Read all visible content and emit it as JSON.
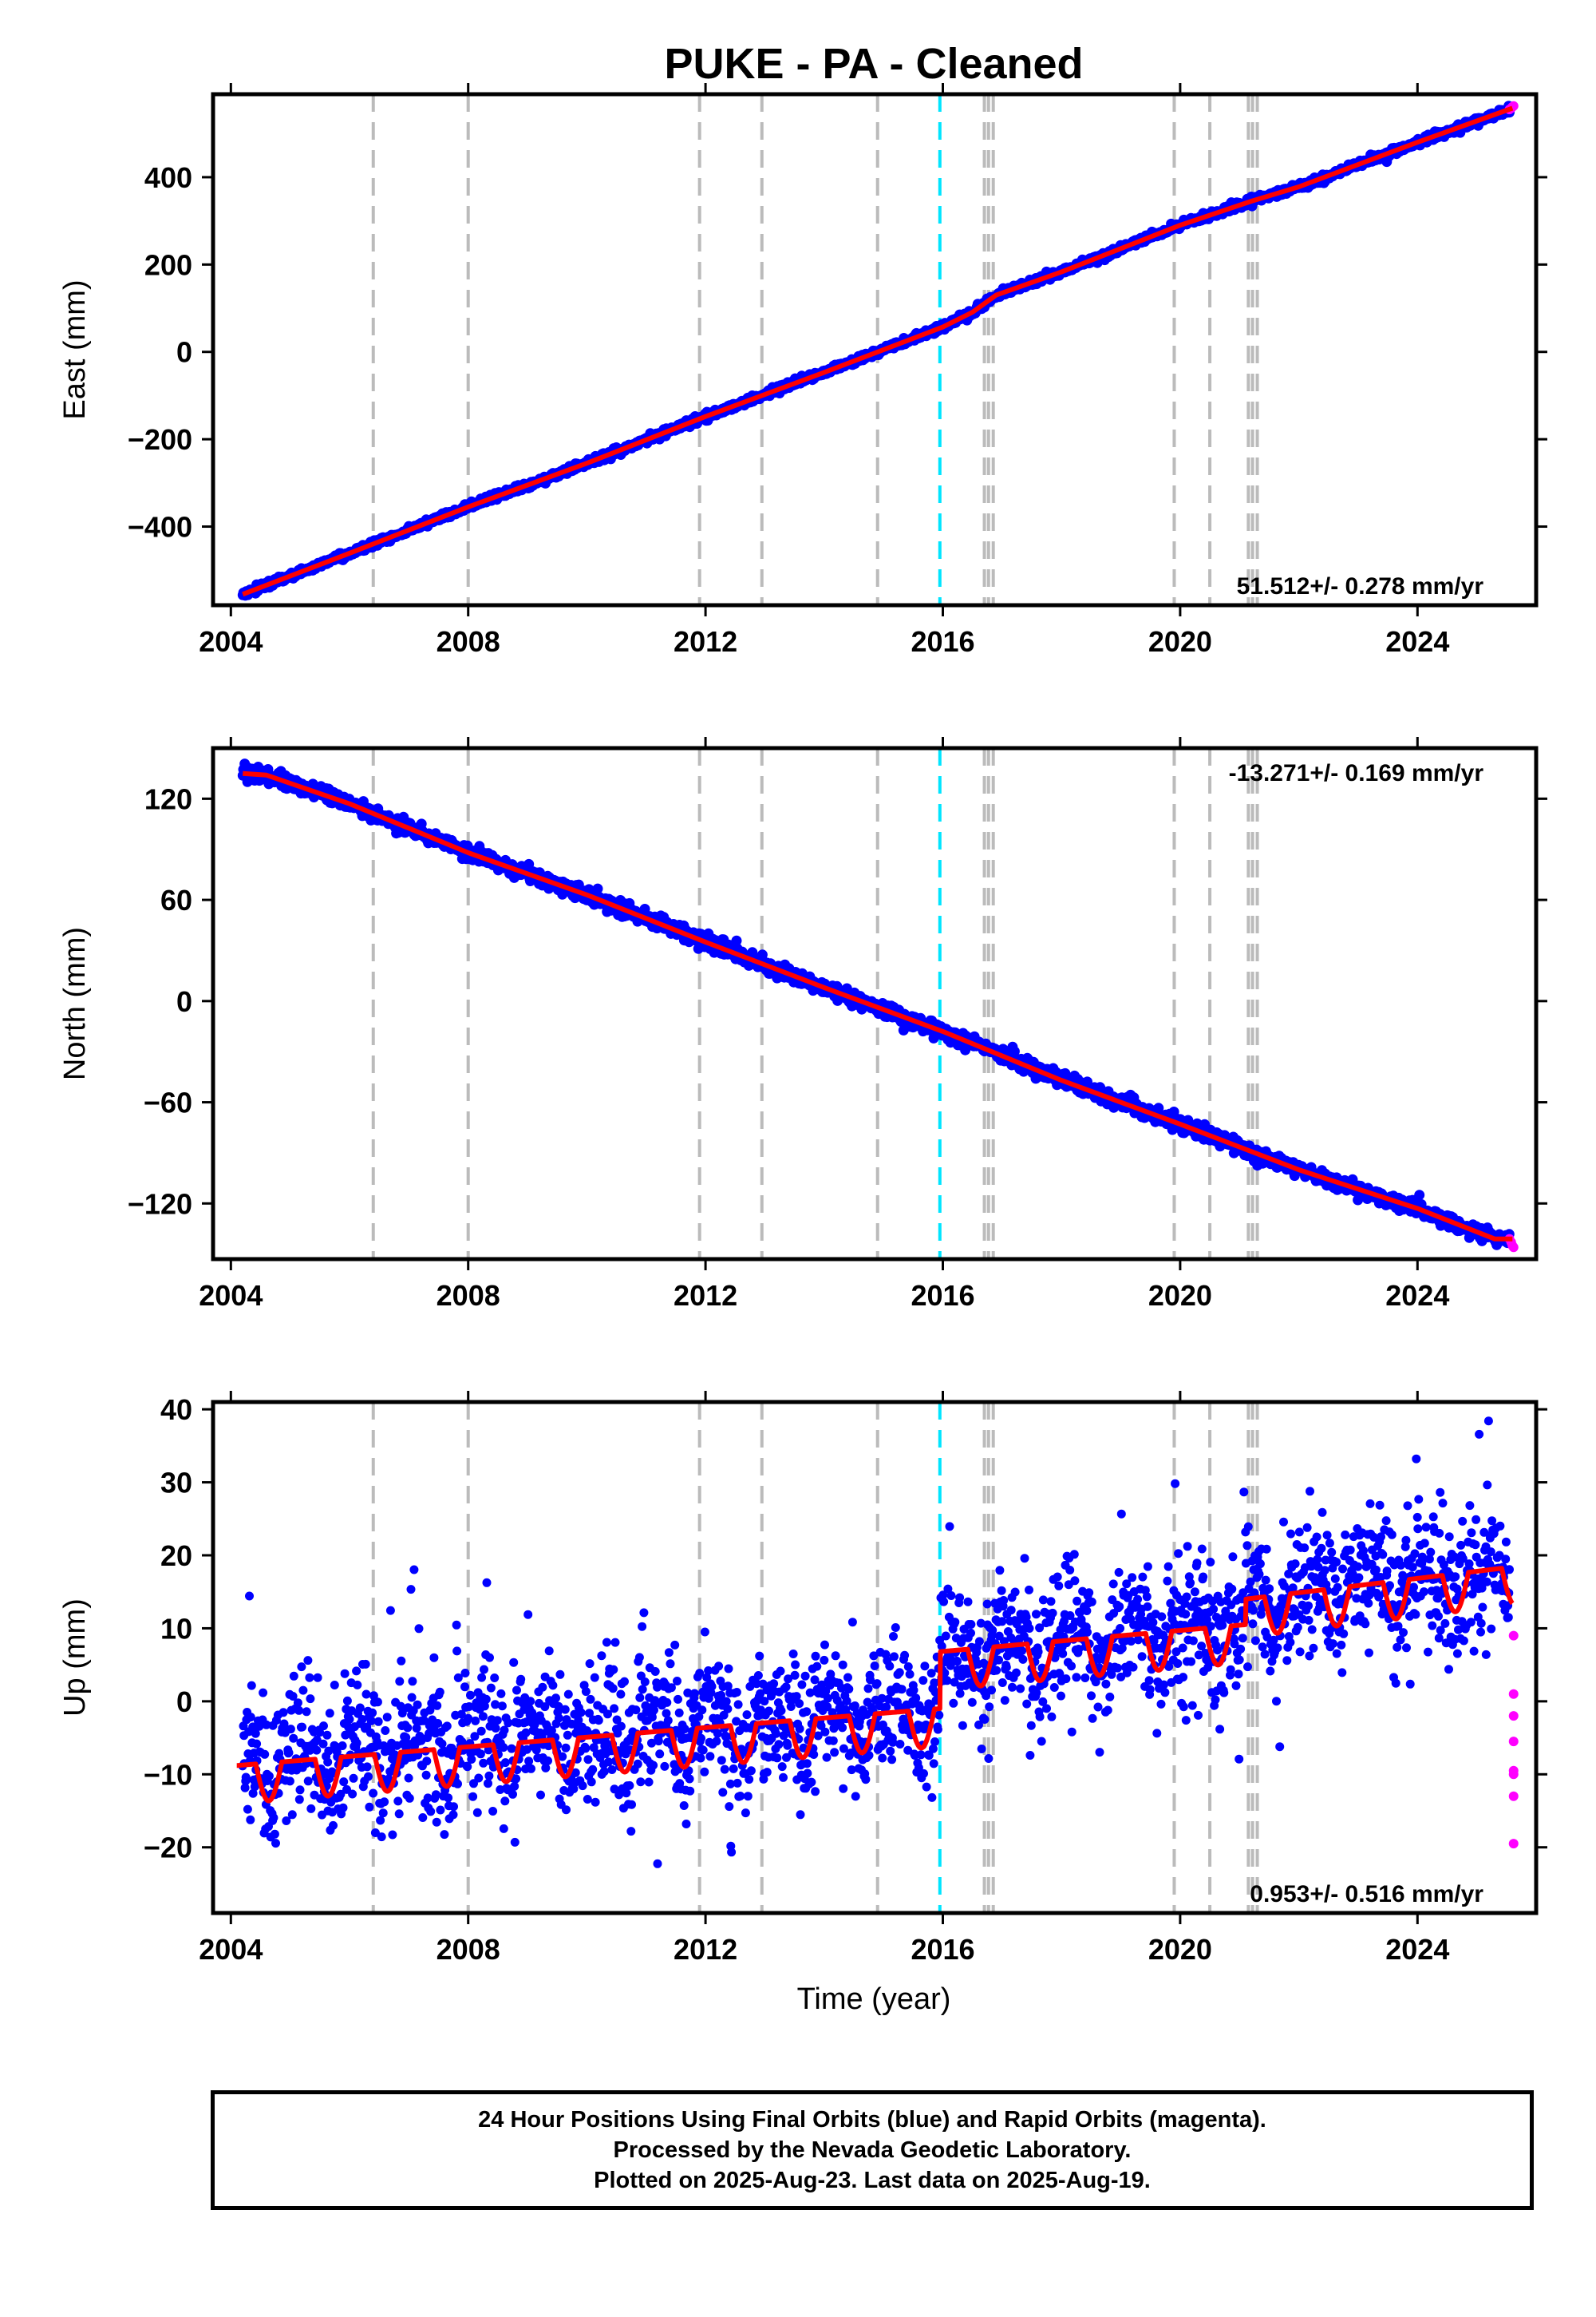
{
  "title": "PUKE  - PA - Cleaned",
  "colors": {
    "final": "#0000ff",
    "rapid": "#ff00ff",
    "model": "#ff0000",
    "event_gray": "#bbbbbb",
    "event_cyan": "#00e5ff"
  },
  "events": {
    "gray": [
      2006.4,
      2008.0,
      2011.9,
      2012.95,
      2014.9,
      2016.7,
      2016.77,
      2016.85,
      2019.9,
      2020.5,
      2021.15,
      2021.22,
      2021.3
    ],
    "cyan": [
      2015.95
    ]
  },
  "chart_data": [
    {
      "type": "scatter",
      "ylabel": "East (mm)",
      "xlim": [
        2003.7,
        2026.0
      ],
      "ylim": [
        -580,
        590
      ],
      "xticks": [
        2004,
        2008,
        2012,
        2016,
        2020,
        2024
      ],
      "yticks": [
        -400,
        -200,
        0,
        200,
        400
      ],
      "ytick_labels": [
        "−400",
        "−200",
        "0",
        "200",
        "400"
      ],
      "rate": "51.512+/- 0.278 mm/yr",
      "rate_position": "bottom-right",
      "model": {
        "x": [
          2004.2,
          2006.0,
          2008.0,
          2010.0,
          2012.0,
          2014.0,
          2016.0,
          2016.5,
          2016.9,
          2018.0,
          2020.0,
          2021.2,
          2022.0,
          2024.0,
          2025.6
        ],
        "y": [
          -555,
          -461,
          -355,
          -255,
          -148,
          -47,
          57,
          91,
          130,
          183,
          290,
          345,
          378,
          480,
          558
        ]
      },
      "series": [
        {
          "name": "Final Orbits",
          "jitter": 4
        },
        {
          "name": "Rapid Orbits",
          "x": [
            2025.55,
            2025.58,
            2025.6,
            2025.62
          ],
          "y": [
            555,
            558,
            561,
            563
          ]
        }
      ]
    },
    {
      "type": "scatter",
      "ylabel": "North (mm)",
      "xlim": [
        2003.7,
        2026.0
      ],
      "ylim": [
        -153,
        150
      ],
      "xticks": [
        2004,
        2008,
        2012,
        2016,
        2020,
        2024
      ],
      "yticks": [
        -120,
        -60,
        0,
        60,
        120
      ],
      "ytick_labels": [
        "−120",
        "−60",
        "0",
        "60",
        "120"
      ],
      "rate": "-13.271+/- 0.169 mm/yr",
      "rate_position": "top-right",
      "model": {
        "x": [
          2004.2,
          2004.6,
          2006.0,
          2008.0,
          2010.0,
          2012.0,
          2014.0,
          2016.0,
          2018.0,
          2020.0,
          2022.0,
          2024.0,
          2025.3,
          2025.6
        ],
        "y": [
          135,
          134,
          117,
          88,
          63,
          35,
          8,
          -18,
          -47,
          -73,
          -100,
          -123,
          -141,
          -141
        ]
      },
      "series": [
        {
          "name": "Final Orbits",
          "jitter": 2.2
        },
        {
          "name": "Rapid Orbits",
          "x": [
            2025.55,
            2025.58,
            2025.6,
            2025.62
          ],
          "y": [
            -141,
            -143,
            -145,
            -146
          ]
        }
      ]
    },
    {
      "type": "scatter",
      "ylabel": "Up (mm)",
      "xlabel": "Time (year)",
      "xlim": [
        2003.7,
        2026.0
      ],
      "ylim": [
        -29,
        41
      ],
      "xticks": [
        2004,
        2008,
        2012,
        2016,
        2020,
        2024
      ],
      "yticks": [
        -20,
        -10,
        0,
        10,
        20,
        30,
        40
      ],
      "ytick_labels": [
        "−20",
        "−10",
        "0",
        "10",
        "20",
        "30",
        "40"
      ],
      "rate": "0.953+/- 0.516 mm/yr",
      "rate_position": "bottom-right",
      "model": {
        "trend": [
          {
            "from": 2004.1,
            "to": 2015.95,
            "y0": -8.8,
            "y1": -1.0
          },
          {
            "from": 2015.95,
            "to": 2021.1,
            "y0": 6.8,
            "y1": 10.5
          },
          {
            "from": 2021.1,
            "to": 2025.6,
            "y0": 14.0,
            "y1": 18.4
          }
        ],
        "seasonal_amplitude": 5.2
      },
      "series": [
        {
          "name": "Final Orbits",
          "jitter": 4.6
        },
        {
          "name": "Rapid Orbits",
          "x": [
            2025.62,
            2025.62,
            2025.62,
            2025.62,
            2025.62,
            2025.62,
            2025.62,
            2025.62
          ],
          "y": [
            9,
            1,
            -2,
            -5.5,
            -9.5,
            -10,
            -13,
            -19.5
          ]
        }
      ]
    }
  ],
  "footer": {
    "line1": "24 Hour Positions Using Final Orbits (blue) and Rapid Orbits (magenta).",
    "line2": "Processed by the Nevada Geodetic Laboratory.",
    "line3": "Plotted on 2025-Aug-23. Last data on 2025-Aug-19."
  }
}
